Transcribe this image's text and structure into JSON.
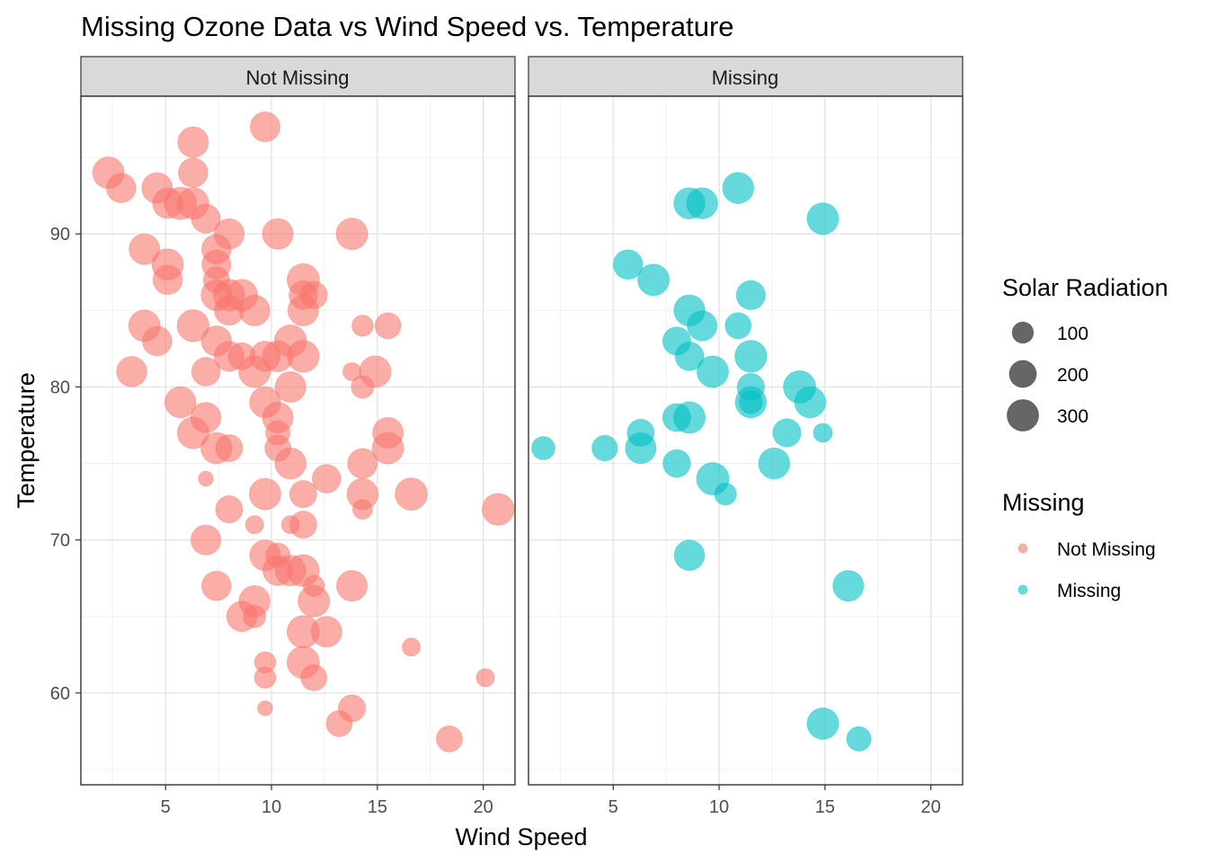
{
  "chart_data": {
    "type": "scatter",
    "title": "Missing Ozone Data vs Wind Speed vs. Temperature",
    "xlabel": "Wind Speed",
    "ylabel": "Temperature",
    "xlim": [
      1,
      21.5
    ],
    "ylim": [
      54,
      99
    ],
    "x_ticks": [
      5,
      10,
      15,
      20
    ],
    "y_ticks": [
      60,
      70,
      80,
      90
    ],
    "grid": true,
    "facets": [
      "Not Missing",
      "Missing"
    ],
    "size_variable": "Solar Radiation",
    "size_legend": [
      100,
      200,
      300
    ],
    "color_legend_title": "Missing",
    "legend_placement": "right",
    "colors": {
      "Not Missing": "#F8766D",
      "Missing": "#00BFC4"
    },
    "series": [
      {
        "name": "Not Missing",
        "points": [
          {
            "x": 2.3,
            "y": 94,
            "r": 300
          },
          {
            "x": 2.9,
            "y": 93,
            "r": 250
          },
          {
            "x": 3.4,
            "y": 81,
            "r": 270
          },
          {
            "x": 4.0,
            "y": 89,
            "r": 280
          },
          {
            "x": 4.0,
            "y": 84,
            "r": 300
          },
          {
            "x": 4.6,
            "y": 93,
            "r": 280
          },
          {
            "x": 4.6,
            "y": 83,
            "r": 250
          },
          {
            "x": 5.1,
            "y": 92,
            "r": 270
          },
          {
            "x": 5.1,
            "y": 88,
            "r": 300
          },
          {
            "x": 5.1,
            "y": 87,
            "r": 250
          },
          {
            "x": 5.7,
            "y": 92,
            "r": 320
          },
          {
            "x": 5.7,
            "y": 79,
            "r": 290
          },
          {
            "x": 6.3,
            "y": 96,
            "r": 280
          },
          {
            "x": 6.3,
            "y": 94,
            "r": 250
          },
          {
            "x": 6.3,
            "y": 92,
            "r": 300
          },
          {
            "x": 6.3,
            "y": 84,
            "r": 310
          },
          {
            "x": 6.3,
            "y": 77,
            "r": 300
          },
          {
            "x": 6.9,
            "y": 91,
            "r": 240
          },
          {
            "x": 6.9,
            "y": 81,
            "r": 230
          },
          {
            "x": 6.9,
            "y": 78,
            "r": 270
          },
          {
            "x": 6.9,
            "y": 74,
            "r": 30
          },
          {
            "x": 6.9,
            "y": 70,
            "r": 260
          },
          {
            "x": 7.4,
            "y": 89,
            "r": 250
          },
          {
            "x": 7.4,
            "y": 88,
            "r": 240
          },
          {
            "x": 7.4,
            "y": 87,
            "r": 180
          },
          {
            "x": 7.4,
            "y": 86,
            "r": 280
          },
          {
            "x": 7.4,
            "y": 83,
            "r": 270
          },
          {
            "x": 7.4,
            "y": 76,
            "r": 290
          },
          {
            "x": 7.4,
            "y": 67,
            "r": 250
          },
          {
            "x": 8.0,
            "y": 90,
            "r": 270
          },
          {
            "x": 8.0,
            "y": 86,
            "r": 300
          },
          {
            "x": 8.0,
            "y": 85,
            "r": 250
          },
          {
            "x": 8.0,
            "y": 82,
            "r": 260
          },
          {
            "x": 8.0,
            "y": 76,
            "r": 200
          },
          {
            "x": 8.0,
            "y": 72,
            "r": 200
          },
          {
            "x": 8.6,
            "y": 86,
            "r": 300
          },
          {
            "x": 8.6,
            "y": 82,
            "r": 200
          },
          {
            "x": 8.6,
            "y": 65,
            "r": 270
          },
          {
            "x": 9.2,
            "y": 85,
            "r": 280
          },
          {
            "x": 9.2,
            "y": 81,
            "r": 300
          },
          {
            "x": 9.2,
            "y": 71,
            "r": 60
          },
          {
            "x": 9.2,
            "y": 66,
            "r": 290
          },
          {
            "x": 9.2,
            "y": 65,
            "r": 120
          },
          {
            "x": 9.7,
            "y": 97,
            "r": 260
          },
          {
            "x": 9.7,
            "y": 82,
            "r": 270
          },
          {
            "x": 9.7,
            "y": 79,
            "r": 290
          },
          {
            "x": 9.7,
            "y": 73,
            "r": 300
          },
          {
            "x": 9.7,
            "y": 69,
            "r": 280
          },
          {
            "x": 9.7,
            "y": 62,
            "r": 100
          },
          {
            "x": 9.7,
            "y": 61,
            "r": 100
          },
          {
            "x": 9.7,
            "y": 59,
            "r": 30
          },
          {
            "x": 10.3,
            "y": 90,
            "r": 280
          },
          {
            "x": 10.3,
            "y": 82,
            "r": 280
          },
          {
            "x": 10.3,
            "y": 78,
            "r": 280
          },
          {
            "x": 10.3,
            "y": 77,
            "r": 150
          },
          {
            "x": 10.3,
            "y": 76,
            "r": 180
          },
          {
            "x": 10.3,
            "y": 69,
            "r": 150
          },
          {
            "x": 10.3,
            "y": 68,
            "r": 260
          },
          {
            "x": 10.9,
            "y": 83,
            "r": 320
          },
          {
            "x": 10.9,
            "y": 80,
            "r": 280
          },
          {
            "x": 10.9,
            "y": 75,
            "r": 290
          },
          {
            "x": 10.9,
            "y": 71,
            "r": 60
          },
          {
            "x": 10.9,
            "y": 68,
            "r": 280
          },
          {
            "x": 11.5,
            "y": 87,
            "r": 320
          },
          {
            "x": 11.5,
            "y": 86,
            "r": 230
          },
          {
            "x": 11.5,
            "y": 85,
            "r": 280
          },
          {
            "x": 11.5,
            "y": 82,
            "r": 310
          },
          {
            "x": 11.5,
            "y": 73,
            "r": 200
          },
          {
            "x": 11.5,
            "y": 71,
            "r": 200
          },
          {
            "x": 11.5,
            "y": 68,
            "r": 310
          },
          {
            "x": 11.5,
            "y": 64,
            "r": 320
          },
          {
            "x": 11.5,
            "y": 62,
            "r": 320
          },
          {
            "x": 12.0,
            "y": 86,
            "r": 200
          },
          {
            "x": 12.0,
            "y": 67,
            "r": 100
          },
          {
            "x": 12.0,
            "y": 66,
            "r": 300
          },
          {
            "x": 12.0,
            "y": 61,
            "r": 180
          },
          {
            "x": 12.6,
            "y": 74,
            "r": 230
          },
          {
            "x": 12.6,
            "y": 64,
            "r": 280
          },
          {
            "x": 13.2,
            "y": 58,
            "r": 180
          },
          {
            "x": 13.8,
            "y": 90,
            "r": 300
          },
          {
            "x": 13.8,
            "y": 81,
            "r": 60
          },
          {
            "x": 13.8,
            "y": 67,
            "r": 280
          },
          {
            "x": 13.8,
            "y": 59,
            "r": 200
          },
          {
            "x": 14.3,
            "y": 84,
            "r": 100
          },
          {
            "x": 14.3,
            "y": 80,
            "r": 120
          },
          {
            "x": 14.3,
            "y": 75,
            "r": 260
          },
          {
            "x": 14.3,
            "y": 73,
            "r": 290
          },
          {
            "x": 14.3,
            "y": 72,
            "r": 80
          },
          {
            "x": 14.9,
            "y": 81,
            "r": 300
          },
          {
            "x": 15.5,
            "y": 84,
            "r": 180
          },
          {
            "x": 15.5,
            "y": 77,
            "r": 280
          },
          {
            "x": 15.5,
            "y": 76,
            "r": 300
          },
          {
            "x": 16.6,
            "y": 73,
            "r": 320
          },
          {
            "x": 16.6,
            "y": 63,
            "r": 60
          },
          {
            "x": 18.4,
            "y": 57,
            "r": 180
          },
          {
            "x": 20.1,
            "y": 61,
            "r": 60
          },
          {
            "x": 20.7,
            "y": 72,
            "r": 310
          }
        ]
      },
      {
        "name": "Missing",
        "points": [
          {
            "x": 1.7,
            "y": 76,
            "r": 130
          },
          {
            "x": 4.6,
            "y": 76,
            "r": 170
          },
          {
            "x": 5.7,
            "y": 88,
            "r": 250
          },
          {
            "x": 6.3,
            "y": 77,
            "r": 200
          },
          {
            "x": 6.3,
            "y": 76,
            "r": 280
          },
          {
            "x": 6.9,
            "y": 87,
            "r": 300
          },
          {
            "x": 8.0,
            "y": 83,
            "r": 220
          },
          {
            "x": 8.0,
            "y": 78,
            "r": 220
          },
          {
            "x": 8.0,
            "y": 75,
            "r": 210
          },
          {
            "x": 8.6,
            "y": 92,
            "r": 290
          },
          {
            "x": 8.6,
            "y": 85,
            "r": 290
          },
          {
            "x": 8.6,
            "y": 82,
            "r": 230
          },
          {
            "x": 8.6,
            "y": 78,
            "r": 300
          },
          {
            "x": 8.6,
            "y": 69,
            "r": 270
          },
          {
            "x": 9.2,
            "y": 92,
            "r": 290
          },
          {
            "x": 9.2,
            "y": 84,
            "r": 260
          },
          {
            "x": 9.7,
            "y": 81,
            "r": 300
          },
          {
            "x": 9.7,
            "y": 74,
            "r": 320
          },
          {
            "x": 10.3,
            "y": 73,
            "r": 110
          },
          {
            "x": 10.9,
            "y": 93,
            "r": 290
          },
          {
            "x": 10.9,
            "y": 84,
            "r": 180
          },
          {
            "x": 11.5,
            "y": 86,
            "r": 240
          },
          {
            "x": 11.5,
            "y": 82,
            "r": 310
          },
          {
            "x": 11.5,
            "y": 80,
            "r": 200
          },
          {
            "x": 11.5,
            "y": 79,
            "r": 290
          },
          {
            "x": 11.5,
            "y": 79,
            "r": 130
          },
          {
            "x": 12.6,
            "y": 75,
            "r": 290
          },
          {
            "x": 13.2,
            "y": 77,
            "r": 220
          },
          {
            "x": 13.8,
            "y": 80,
            "r": 320
          },
          {
            "x": 14.3,
            "y": 79,
            "r": 290
          },
          {
            "x": 14.9,
            "y": 91,
            "r": 300
          },
          {
            "x": 14.9,
            "y": 77,
            "r": 70
          },
          {
            "x": 14.9,
            "y": 58,
            "r": 300
          },
          {
            "x": 16.1,
            "y": 67,
            "r": 280
          },
          {
            "x": 16.6,
            "y": 57,
            "r": 150
          }
        ]
      }
    ]
  }
}
